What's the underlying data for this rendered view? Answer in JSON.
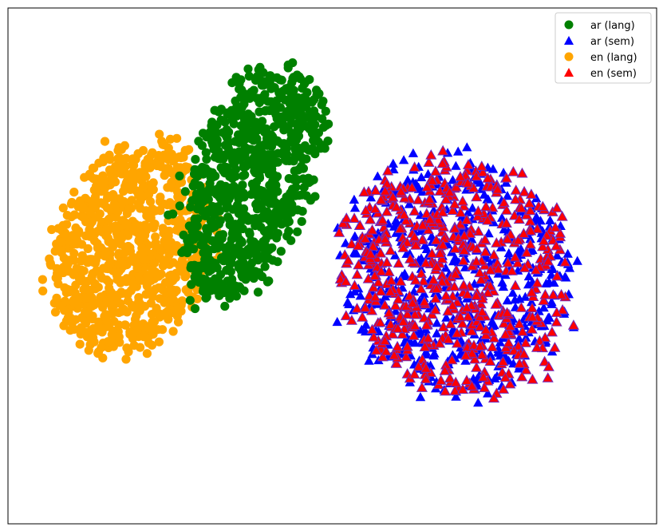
{
  "chart_data": {
    "type": "scatter",
    "title": "",
    "xlabel": "",
    "ylabel": "",
    "xlim": [
      -100,
      100
    ],
    "ylim": [
      -80,
      80
    ],
    "grid": false,
    "axis_ticks": false,
    "legend_position": "top-right",
    "series": [
      {
        "name": "ar (lang)",
        "marker": "circle",
        "color": "#008000",
        "cluster": {
          "shape": "blob",
          "center": [
            -25,
            26
          ],
          "spread": [
            18,
            38
          ],
          "tilt": -0.35,
          "count": 820
        }
      },
      {
        "name": "ar (sem)",
        "marker": "triangle",
        "color": "#0000ff",
        "cluster": {
          "shape": "blob",
          "center": [
            38,
            -3
          ],
          "spread": [
            34,
            38
          ],
          "tilt": 0.45,
          "count": 520
        }
      },
      {
        "name": "en (lang)",
        "marker": "circle",
        "color": "#ffa500",
        "cluster": {
          "shape": "blob",
          "center": [
            -62,
            6
          ],
          "spread": [
            24,
            34
          ],
          "tilt": -0.35,
          "count": 900
        }
      },
      {
        "name": "en (sem)",
        "marker": "triangle",
        "color": "#ff0000",
        "cluster": {
          "shape": "blob",
          "center": [
            38,
            -3
          ],
          "spread": [
            34,
            38
          ],
          "tilt": 0.45,
          "count": 620
        }
      }
    ]
  }
}
